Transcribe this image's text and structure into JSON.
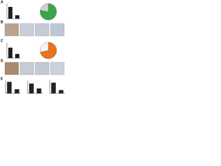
{
  "panels": [
    "A",
    "B",
    "C",
    "D",
    "E"
  ],
  "chart_data": [
    {
      "type": "bar",
      "categories": [
        null,
        null
      ],
      "values": [
        62,
        18
      ],
      "color": "#222222",
      "ylim": [
        0,
        80
      ]
    },
    {
      "type": "pie",
      "values": [
        78,
        22
      ],
      "colors": [
        "#3aa64a",
        "#cfcfcf"
      ]
    },
    {
      "type": "bar",
      "categories": [
        null,
        null
      ],
      "values": [
        55,
        22
      ],
      "color": "#222222",
      "ylim": [
        0,
        80
      ]
    },
    {
      "type": "pie",
      "values": [
        72,
        28
      ],
      "colors": [
        "#e8731c",
        "#f4f4f4"
      ]
    },
    {
      "type": "bar",
      "categories": [
        null,
        null
      ],
      "values": [
        70,
        25
      ],
      "color": "#222222",
      "ylim": [
        0,
        80
      ]
    },
    {
      "type": "bar",
      "categories": [
        null,
        null
      ],
      "values": [
        60,
        30
      ],
      "color": "#222222",
      "ylim": [
        0,
        80
      ]
    },
    {
      "type": "bar",
      "categories": [
        null,
        null
      ],
      "values": [
        65,
        20
      ],
      "color": "#222222",
      "ylim": [
        0,
        80
      ]
    }
  ]
}
